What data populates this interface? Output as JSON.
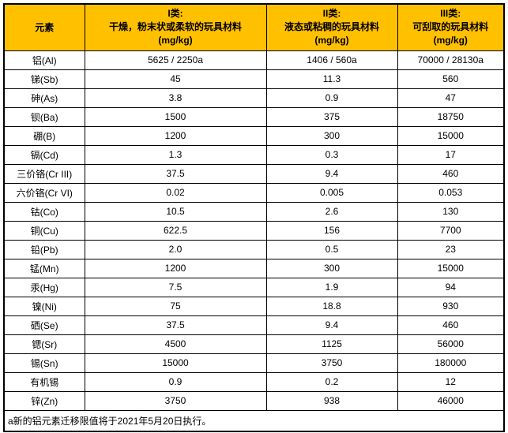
{
  "colors": {
    "header_bg": "#FFC000",
    "border": "#000000",
    "text": "#000000",
    "page_bg": "#FFFFFF"
  },
  "table": {
    "header": {
      "element_label": "元素",
      "categories": [
        {
          "title": "I类:",
          "subtitle": "干燥，粉末状或柔软的玩具材料",
          "unit": "(mg/kg)"
        },
        {
          "title": "II类:",
          "subtitle": "液态或粘稠的玩具材料",
          "unit": "(mg/kg)"
        },
        {
          "title": "III类:",
          "subtitle": "可刮取的玩具材料",
          "unit": "(mg/kg)"
        }
      ]
    },
    "rows": [
      {
        "element": "铝(Al)",
        "c1": "5625 / 2250a",
        "c2": "1406 / 560a",
        "c3": "70000 / 28130a"
      },
      {
        "element": "锑(Sb)",
        "c1": "45",
        "c2": "11.3",
        "c3": "560"
      },
      {
        "element": "砷(As)",
        "c1": "3.8",
        "c2": "0.9",
        "c3": "47"
      },
      {
        "element": "钡(Ba)",
        "c1": "1500",
        "c2": "375",
        "c3": "18750"
      },
      {
        "element": "硼(B)",
        "c1": "1200",
        "c2": "300",
        "c3": "15000"
      },
      {
        "element": "镉(Cd)",
        "c1": "1.3",
        "c2": "0.3",
        "c3": "17"
      },
      {
        "element": "三价铬(Cr III)",
        "c1": "37.5",
        "c2": "9.4",
        "c3": "460"
      },
      {
        "element": "六价铬(Cr VI)",
        "c1": "0.02",
        "c2": "0.005",
        "c3": "0.053"
      },
      {
        "element": "钴(Co)",
        "c1": "10.5",
        "c2": "2.6",
        "c3": "130"
      },
      {
        "element": "铜(Cu)",
        "c1": "622.5",
        "c2": "156",
        "c3": "7700"
      },
      {
        "element": "铅(Pb)",
        "c1": "2.0",
        "c2": "0.5",
        "c3": "23"
      },
      {
        "element": "锰(Mn)",
        "c1": "1200",
        "c2": "300",
        "c3": "15000"
      },
      {
        "element": "汞(Hg)",
        "c1": "7.5",
        "c2": "1.9",
        "c3": "94"
      },
      {
        "element": "镍(Ni)",
        "c1": "75",
        "c2": "18.8",
        "c3": "930"
      },
      {
        "element": "硒(Se)",
        "c1": "37.5",
        "c2": "9.4",
        "c3": "460"
      },
      {
        "element": "锶(Sr)",
        "c1": "4500",
        "c2": "1125",
        "c3": "56000"
      },
      {
        "element": "锡(Sn)",
        "c1": "15000",
        "c2": "3750",
        "c3": "180000"
      },
      {
        "element": "有机锡",
        "c1": "0.9",
        "c2": "0.2",
        "c3": "12"
      },
      {
        "element": "锌(Zn)",
        "c1": "3750",
        "c2": "938",
        "c3": "46000"
      }
    ],
    "footnote": "a新的铝元素迁移限值将于2021年5月20日执行。"
  }
}
